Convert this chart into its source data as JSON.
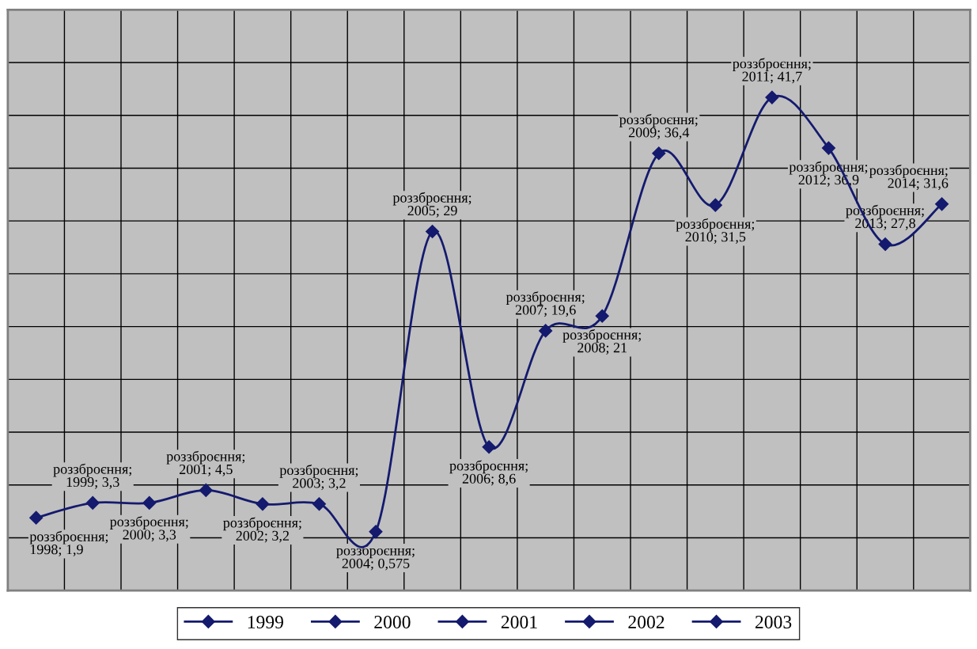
{
  "chart_data": {
    "type": "line",
    "categories": [
      null,
      null,
      null,
      null,
      null,
      null,
      null,
      null,
      null,
      null,
      null,
      null,
      null,
      null,
      null,
      null,
      null
    ],
    "series": [
      {
        "name": "1999",
        "color": "#141a6e",
        "values": [
          1.9,
          3.3,
          3.3,
          4.5,
          3.2,
          3.2,
          0.575,
          29,
          8.6,
          19.6,
          21,
          36.4,
          31.5,
          41.7,
          36.9,
          27.8,
          31.6
        ],
        "value_labels": [
          "роззброєння; 1998; 1,9",
          "роззброєння; 1999; 3,3",
          "роззброєння; 2000; 3,3",
          "роззброєння; 2001; 4,5",
          "роззброєння; 2002; 3,2",
          "роззброєння; 2003; 3,2",
          "роззброєння; 2004; 0,575",
          "роззброєння; 2005; 29",
          "роззброєння; 2006; 8,6",
          "роззброєння; 2007; 19,6",
          "роззброєння; 2008; 21",
          "роззброєння; 2009; 36,4",
          "роззброєння; 2010; 31,5",
          "роззброєння; 2011; 41,7",
          "роззброєння; 2012; 36,9",
          "роззброєння; 2013; 27,8",
          "роззброєння; 2014; 31,6"
        ]
      },
      {
        "name": "2000",
        "color": "#141a6e",
        "values": [
          null,
          null,
          null,
          null,
          null,
          null,
          null,
          null,
          null,
          null,
          null,
          null,
          null,
          null,
          null,
          null,
          null
        ]
      },
      {
        "name": "2001",
        "color": "#141a6e",
        "values": [
          null,
          null,
          null,
          null,
          null,
          null,
          null,
          null,
          null,
          null,
          null,
          null,
          null,
          null,
          null,
          null,
          null
        ]
      },
      {
        "name": "2002",
        "color": "#141a6e",
        "values": [
          null,
          null,
          null,
          null,
          null,
          null,
          null,
          null,
          null,
          null,
          null,
          null,
          null,
          null,
          null,
          null,
          null
        ]
      },
      {
        "name": "2003",
        "color": "#141a6e",
        "values": [
          null,
          null,
          null,
          null,
          null,
          null,
          null,
          null,
          null,
          null,
          null,
          null,
          null,
          null,
          null,
          null,
          null
        ]
      }
    ],
    "ylim": [
      -5,
      50
    ],
    "yticks": [
      {
        "value": -5,
        "label": null
      },
      {
        "value": 0,
        "label": null
      },
      {
        "value": 5,
        "label": null
      },
      {
        "value": 10,
        "label": null
      },
      {
        "value": 15,
        "label": null
      },
      {
        "value": 20,
        "label": null
      },
      {
        "value": 25,
        "label": null
      },
      {
        "value": 30,
        "label": null
      },
      {
        "value": 35,
        "label": null
      },
      {
        "value": 40,
        "label": null
      },
      {
        "value": 45,
        "label": null
      },
      {
        "value": 50,
        "label": null
      }
    ],
    "grid": true,
    "legend": "bottom",
    "marker": "diamond",
    "line_style": "solid"
  }
}
